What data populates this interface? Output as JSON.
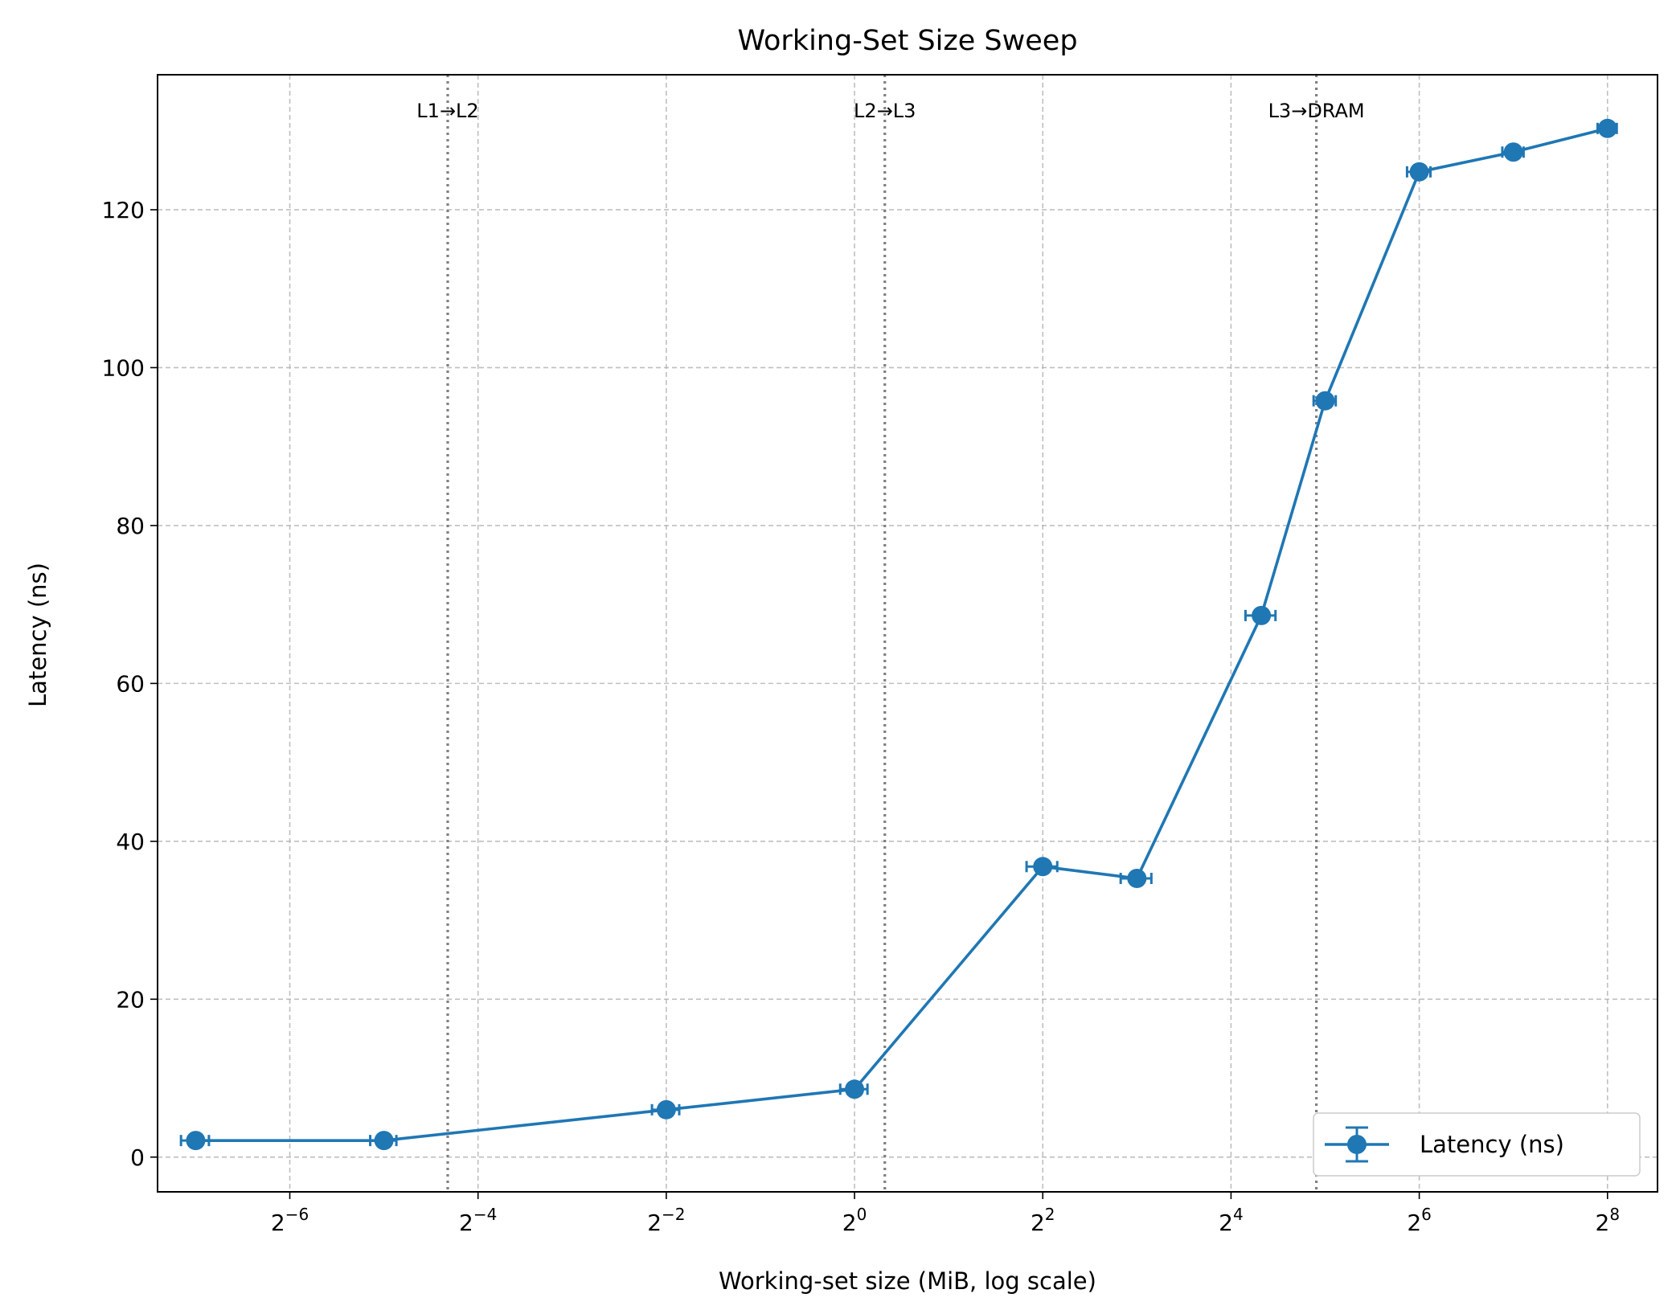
{
  "chart_data": {
    "type": "line",
    "title": "Working-Set Size Sweep",
    "xlabel": "Working-set size (MiB, log scale)",
    "ylabel": "Latency (ns)",
    "x_scale": "log2",
    "xlim": [
      0.0059,
      370
    ],
    "ylim": [
      -4.4,
      137.1
    ],
    "x_ticks": [
      {
        "value": 0.015625,
        "base": "2",
        "exp": "−6"
      },
      {
        "value": 0.0625,
        "base": "2",
        "exp": "−4"
      },
      {
        "value": 0.25,
        "base": "2",
        "exp": "−2"
      },
      {
        "value": 1,
        "base": "2",
        "exp": "0"
      },
      {
        "value": 4,
        "base": "2",
        "exp": "2"
      },
      {
        "value": 16,
        "base": "2",
        "exp": "4"
      },
      {
        "value": 64,
        "base": "2",
        "exp": "6"
      },
      {
        "value": 256,
        "base": "2",
        "exp": "8"
      }
    ],
    "y_ticks": [
      0,
      20,
      40,
      60,
      80,
      100,
      120
    ],
    "grid": true,
    "legend_position": "lower right",
    "series": [
      {
        "name": "Latency (ns)",
        "color": "#1f77b4",
        "x": [
          0.0078125,
          0.03125,
          0.25,
          1,
          4,
          8,
          20,
          32,
          64,
          128,
          256
        ],
        "y": [
          2.1,
          2.1,
          6.0,
          8.6,
          36.8,
          35.3,
          68.6,
          95.8,
          124.8,
          127.3,
          130.3
        ],
        "xerr": [
          0.0008,
          0.003,
          0.025,
          0.1,
          0.45,
          0.9,
          2.2,
          2.6,
          5.5,
          10,
          18
        ]
      }
    ],
    "annotations": [
      {
        "x": 0.05,
        "label": "L1→L2"
      },
      {
        "x": 1.25,
        "label": "L2→L3"
      },
      {
        "x": 30,
        "label": "L3→DRAM"
      }
    ]
  }
}
